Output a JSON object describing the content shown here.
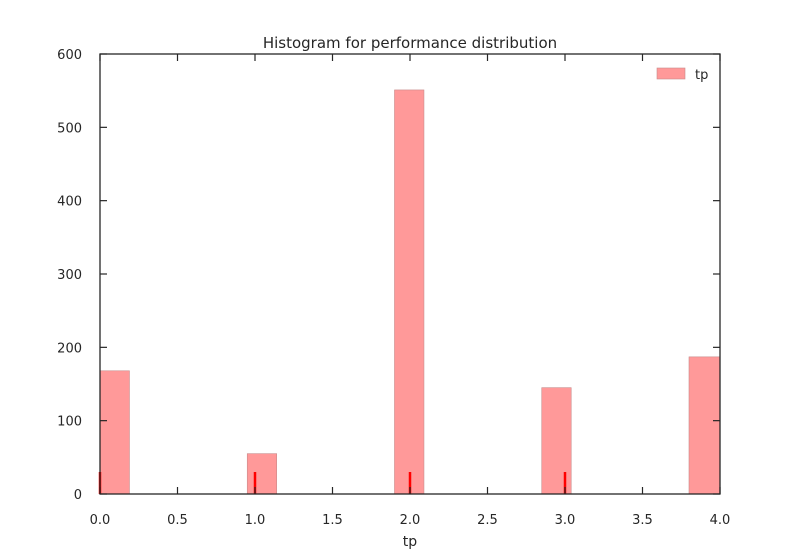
{
  "chart_data": {
    "type": "bar",
    "title": "Histogram for performance distribution",
    "xlabel": "tp",
    "ylabel": "",
    "xlim": [
      0,
      4
    ],
    "ylim": [
      0,
      600
    ],
    "xticks": [
      "0.0",
      "0.5",
      "1.0",
      "1.5",
      "2.0",
      "2.5",
      "3.0",
      "3.5",
      "4.0"
    ],
    "yticks": [
      "0",
      "100",
      "200",
      "300",
      "400",
      "500",
      "600"
    ],
    "grid": false,
    "legend_position": "top-right",
    "series": [
      {
        "name": "tp",
        "color": "#ff9999",
        "bins": [
          {
            "x0": 0.0,
            "x1": 0.19,
            "value": 168
          },
          {
            "x0": 0.95,
            "x1": 1.14,
            "value": 55
          },
          {
            "x0": 1.9,
            "x1": 2.09,
            "value": 551
          },
          {
            "x0": 2.85,
            "x1": 3.04,
            "value": 145
          },
          {
            "x0": 3.8,
            "x1": 4.0,
            "value": 187
          }
        ]
      }
    ],
    "rug": {
      "color": "#ff0000",
      "values": [
        0,
        1,
        2,
        3
      ]
    }
  }
}
